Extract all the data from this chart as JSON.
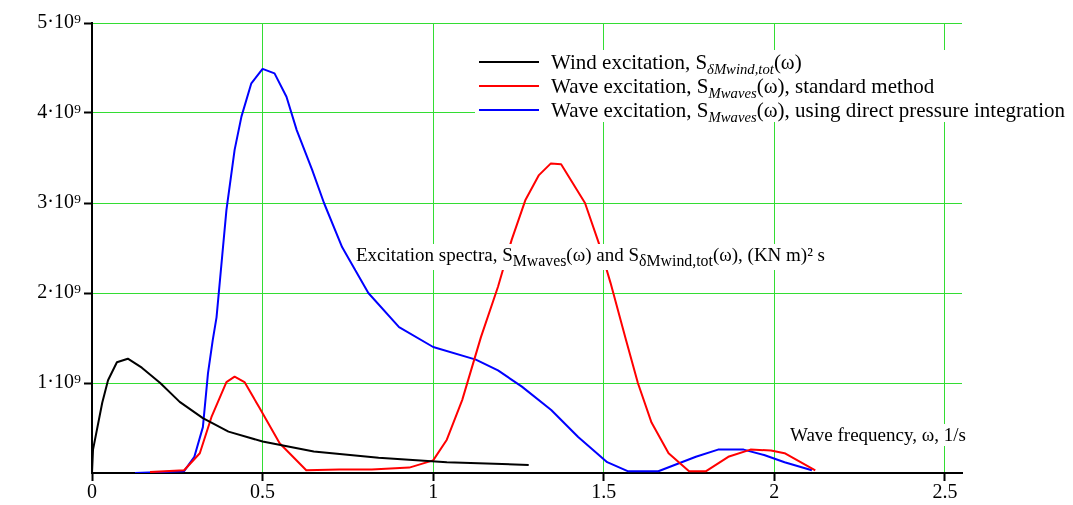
{
  "chart_data": {
    "type": "line",
    "xlabel": "Wave frequency, ω, 1/s",
    "ylabel": "Excitation spectra, S$_{Mwaves}$(ω) and S$_{δMwind,tot}$(ω), (KN m)² s",
    "xlim": [
      0,
      2.55
    ],
    "xticks": [
      0,
      0.5,
      1,
      1.5,
      2,
      2.5
    ],
    "ylim": [
      0,
      5000000000.0
    ],
    "yticks": [
      {
        "value": 1000000000.0,
        "label": "1·10⁹"
      },
      {
        "value": 2000000000.0,
        "label": "2·10⁹"
      },
      {
        "value": 3000000000.0,
        "label": "3·10⁹"
      },
      {
        "value": 4000000000.0,
        "label": "4·10⁹"
      },
      {
        "value": 5000000000.0,
        "label": "5·10⁹"
      }
    ],
    "grid": true,
    "legend": "top right",
    "marker": "none",
    "line_style": "solid",
    "series": [
      {
        "name": "Wind excitation, S$_{δMwind,tot}$(ω)",
        "color": "#000000",
        "x": [
          0,
          0.003,
          0.03,
          0.047,
          0.073,
          0.105,
          0.146,
          0.2,
          0.257,
          0.325,
          0.4,
          0.5,
          0.65,
          0.84,
          1.04,
          1.28
        ],
        "values": [
          0,
          260000000.0,
          780000000.0,
          1030000000.0,
          1230000000.0,
          1270000000.0,
          1170000000.0,
          1000000000.0,
          790000000.0,
          610000000.0,
          460000000.0,
          350000000.0,
          240000000.0,
          170000000.0,
          120000000.0,
          90000000.0
        ]
      },
      {
        "name": "Wave excitation, S$_{Mwaves}$(ω), standard method",
        "color": "#ff0000",
        "x": [
          0.17,
          0.27,
          0.316,
          0.35,
          0.394,
          0.418,
          0.447,
          0.49,
          0.55,
          0.628,
          0.725,
          0.82,
          0.93,
          1.0,
          1.04,
          1.085,
          1.14,
          1.19,
          1.23,
          1.27,
          1.31,
          1.345,
          1.375,
          1.445,
          1.485,
          1.52,
          1.565,
          1.6,
          1.64,
          1.69,
          1.75,
          1.8,
          1.865,
          1.93,
          1.99,
          2.03,
          2.12
        ],
        "values": [
          10000000.0,
          30000000.0,
          220000000.0,
          620000000.0,
          1010000000.0,
          1070000000.0,
          1010000000.0,
          730000000.0,
          330000000.0,
          30000000.0,
          40000000.0,
          40000000.0,
          60000000.0,
          140000000.0,
          370000000.0,
          810000000.0,
          1510000000.0,
          2070000000.0,
          2590000000.0,
          3030000000.0,
          3310000000.0,
          3440000000.0,
          3430000000.0,
          3000000000.0,
          2560000000.0,
          2110000000.0,
          1480000000.0,
          1000000000.0,
          560000000.0,
          220000000.0,
          20000000.0,
          20000000.0,
          180000000.0,
          260000000.0,
          250000000.0,
          220000000.0,
          30000000.0
        ]
      },
      {
        "name": "Wave excitation, S$_{Mwaves}$(ω), using direct pressure integration",
        "color": "#0000ff",
        "x": [
          0.126,
          0.27,
          0.3,
          0.325,
          0.34,
          0.354,
          0.365,
          0.394,
          0.418,
          0.438,
          0.467,
          0.5,
          0.535,
          0.57,
          0.6,
          0.645,
          0.68,
          0.733,
          0.81,
          0.9,
          1.0,
          1.125,
          1.19,
          1.26,
          1.346,
          1.425,
          1.51,
          1.57,
          1.66,
          1.77,
          1.835,
          1.91,
          1.97,
          2.03,
          2.11
        ],
        "values": [
          0,
          20000000.0,
          180000000.0,
          510000000.0,
          1110000000.0,
          1480000000.0,
          1730000000.0,
          2920000000.0,
          3590000000.0,
          3960000000.0,
          4330000000.0,
          4490000000.0,
          4440000000.0,
          4180000000.0,
          3810000000.0,
          3370000000.0,
          3000000000.0,
          2510000000.0,
          2000000000.0,
          1620000000.0,
          1400000000.0,
          1260000000.0,
          1140000000.0,
          960000000.0,
          700000000.0,
          400000000.0,
          120000000.0,
          20000000.0,
          20000000.0,
          180000000.0,
          260000000.0,
          260000000.0,
          200000000.0,
          120000000.0,
          30000000.0
        ]
      }
    ]
  }
}
